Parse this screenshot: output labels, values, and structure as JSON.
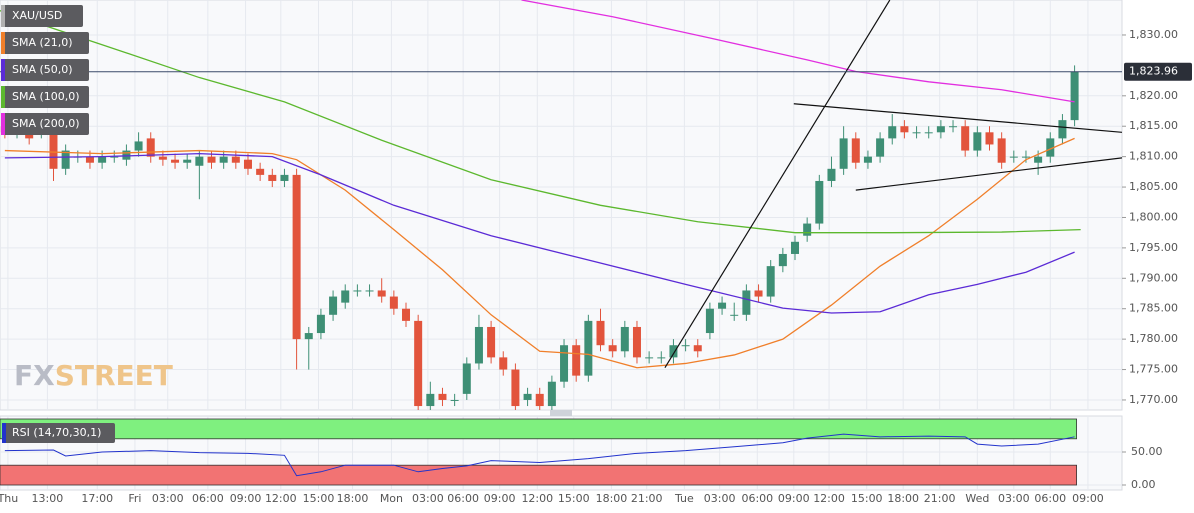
{
  "chart_data": [
    {
      "type": "candlestick",
      "series": [
        {
          "name": "XAU/USD",
          "up_color": "#3e8f75",
          "down_color": "#e2543c",
          "open": [
            1815,
            1814,
            1814,
            1814,
            1815,
            1808,
            1810,
            1810,
            1809,
            1810,
            1809.5,
            1811,
            1813,
            1810,
            1809.5,
            1809,
            1808.5,
            1810,
            1809,
            1810,
            1809.5,
            1808,
            1807,
            1806,
            1807,
            1780,
            1781,
            1784,
            1786,
            1788,
            1788,
            1788,
            1787,
            1785,
            1783,
            1769,
            1771,
            1770,
            1771,
            1776,
            1782,
            1777,
            1775,
            1770,
            1771,
            1769,
            1773,
            1779,
            1774,
            1783,
            1779,
            1778,
            1782,
            1777,
            1777,
            1777,
            1779,
            1779,
            1781,
            1785,
            1784,
            1784,
            1788,
            1787,
            1792,
            1794,
            1797,
            1799,
            1806,
            1808,
            1813,
            1809,
            1810,
            1813,
            1815,
            1814,
            1814,
            1814,
            1815,
            1815,
            1811,
            1814,
            1813,
            1810,
            1810,
            1809,
            1810,
            1813,
            1816
          ],
          "high": [
            1816,
            1816,
            1815,
            1816,
            1816,
            1812,
            1811,
            1811,
            1811,
            1811,
            1812,
            1814,
            1814,
            1811,
            1810.5,
            1810.5,
            1811,
            1811,
            1811,
            1811,
            1810.5,
            1809,
            1808,
            1808,
            1808,
            1782,
            1785,
            1788,
            1789,
            1789,
            1789,
            1790,
            1788,
            1786,
            1784,
            1773,
            1772,
            1771,
            1777,
            1784,
            1783,
            1778,
            1776,
            1772,
            1772,
            1774,
            1780,
            1780,
            1784,
            1785,
            1780,
            1783,
            1783,
            1778,
            1778,
            1780,
            1780,
            1780,
            1786,
            1787,
            1786,
            1789,
            1789,
            1793,
            1795,
            1797,
            1800,
            1807,
            1810,
            1815,
            1814,
            1811,
            1814,
            1817,
            1816,
            1815,
            1815,
            1816,
            1816,
            1816,
            1815,
            1815,
            1814,
            1811,
            1811,
            1811,
            1814,
            1817,
            1825
          ],
          "low": [
            1813,
            1813,
            1812,
            1813,
            1806,
            1807,
            1809,
            1808,
            1808,
            1809,
            1808.5,
            1810,
            1809,
            1808.5,
            1808,
            1808,
            1803,
            1808,
            1808,
            1808,
            1807,
            1806,
            1805,
            1805,
            1775,
            1775,
            1780,
            1783,
            1785,
            1787,
            1787,
            1786,
            1784,
            1782,
            1768,
            1768,
            1769,
            1769,
            1770,
            1775,
            1776,
            1774,
            1768,
            1769,
            1768,
            1768,
            1772,
            1773,
            1773,
            1778,
            1777,
            1777,
            1776,
            1776,
            1776,
            1776,
            1778,
            1777,
            1780,
            1784,
            1783,
            1783,
            1786,
            1786,
            1791,
            1793,
            1796,
            1798,
            1805,
            1807,
            1808,
            1808,
            1809,
            1812,
            1813,
            1813,
            1813,
            1813,
            1814,
            1810,
            1810,
            1811,
            1808,
            1809,
            1809,
            1807,
            1809,
            1812,
            1815
          ],
          "close": [
            1814,
            1815,
            1813,
            1815,
            1808,
            1811,
            1810,
            1809,
            1810,
            1810,
            1811,
            1812.5,
            1810,
            1809.5,
            1809,
            1809.5,
            1810,
            1809,
            1810,
            1809,
            1808,
            1807,
            1806,
            1807,
            1780,
            1781,
            1784,
            1787,
            1788,
            1788,
            1788,
            1787,
            1785,
            1783,
            1769,
            1771,
            1770,
            1770,
            1776,
            1782,
            1777,
            1775,
            1769,
            1771,
            1769,
            1773,
            1779,
            1774,
            1783,
            1779,
            1778,
            1782,
            1777,
            1777,
            1777,
            1779,
            1779,
            1778,
            1785,
            1786,
            1784,
            1788,
            1787,
            1792,
            1794,
            1796,
            1799,
            1806,
            1808,
            1813,
            1809,
            1810,
            1813,
            1815,
            1814,
            1814,
            1814,
            1815,
            1815,
            1811,
            1814,
            1812,
            1809,
            1810,
            1810,
            1810,
            1813,
            1816,
            1824
          ]
        },
        {
          "name": "SMA (21,0)",
          "color": "#f07f2a",
          "x": [
            0,
            8,
            16,
            22,
            24,
            28,
            32,
            36,
            40,
            44,
            48,
            52,
            56,
            60,
            64,
            68,
            72,
            76,
            80,
            84,
            88
          ],
          "values": [
            1811,
            1810.5,
            1811,
            1810.5,
            1809.5,
            1804.5,
            1798,
            1791.4,
            1784,
            1778,
            1777.5,
            1775.3,
            1776,
            1777.4,
            1780,
            1785.6,
            1792,
            1797,
            1803,
            1809.5,
            1813
          ]
        },
        {
          "name": "SMA (50,0)",
          "color": "#5b2bd6",
          "x": [
            0,
            8,
            16,
            22,
            26,
            32,
            40,
            48,
            56,
            64,
            68,
            72,
            76,
            80,
            84,
            88
          ],
          "values": [
            1809.8,
            1810,
            1810.5,
            1810,
            1807,
            1802,
            1797,
            1793,
            1789,
            1785.1,
            1784.3,
            1784.5,
            1787.3,
            1789,
            1791,
            1794.3
          ]
        },
        {
          "name": "SMA (100,0)",
          "color": "#5cb82e",
          "x": [
            -0.4,
            8,
            16,
            23,
            31,
            40,
            49,
            57,
            65,
            73,
            82,
            88.5
          ],
          "values": [
            1834,
            1828.4,
            1823,
            1819,
            1812.7,
            1806.2,
            1802,
            1799.3,
            1797.5,
            1797.5,
            1797.6,
            1798
          ]
        },
        {
          "name": "SMA (200,0)",
          "color": "#e22fe0",
          "x": [
            42.5,
            50,
            58,
            66,
            70,
            76,
            82,
            88
          ],
          "values": [
            1835.75,
            1833,
            1829.5,
            1825.9,
            1824,
            1822.3,
            1821,
            1819
          ]
        }
      ],
      "trendlines": [
        {
          "x": [
            54.3,
            72.8
          ],
          "y": [
            1775.3,
            1835.75
          ]
        },
        {
          "x": [
            64.9,
            91.9
          ],
          "y": [
            1818.7,
            1814
          ]
        },
        {
          "x": [
            70,
            91.9
          ],
          "y": [
            1804.5,
            1809.8
          ]
        }
      ],
      "trendline_color": "#111111",
      "last_price": {
        "value": 1823.96,
        "label": "1,823.96"
      },
      "xlim": [
        -0.4,
        91.9
      ],
      "xticks": [
        {
          "value": 0.25,
          "label": "Thu"
        },
        {
          "value": 3.5,
          "label": "13:00"
        },
        {
          "value": 7.6,
          "label": "17:00"
        },
        {
          "value": 10.7,
          "label": "Fri"
        },
        {
          "value": 13.4,
          "label": "03:00"
        },
        {
          "value": 16.7,
          "label": "06:00"
        },
        {
          "value": 19.8,
          "label": "09:00"
        },
        {
          "value": 22.7,
          "label": "12:00"
        },
        {
          "value": 25.8,
          "label": "15:00"
        },
        {
          "value": 28.6,
          "label": "18:00"
        },
        {
          "value": 31.8,
          "label": "Mon"
        },
        {
          "value": 34.8,
          "label": "03:00"
        },
        {
          "value": 37.7,
          "label": "06:00"
        },
        {
          "value": 40.7,
          "label": "09:00"
        },
        {
          "value": 43.8,
          "label": "12:00"
        },
        {
          "value": 46.8,
          "label": "15:00"
        },
        {
          "value": 49.9,
          "label": "18:00"
        },
        {
          "value": 52.8,
          "label": "21:00"
        },
        {
          "value": 55.9,
          "label": "Tue"
        },
        {
          "value": 58.8,
          "label": "03:00"
        },
        {
          "value": 61.9,
          "label": "06:00"
        },
        {
          "value": 64.9,
          "label": "09:00"
        },
        {
          "value": 67.8,
          "label": "12:00"
        },
        {
          "value": 70.9,
          "label": "15:00"
        },
        {
          "value": 73.9,
          "label": "18:00"
        },
        {
          "value": 76.9,
          "label": "21:00"
        },
        {
          "value": 80,
          "label": "Wed"
        },
        {
          "value": 83,
          "label": "03:00"
        },
        {
          "value": 86,
          "label": "06:00"
        },
        {
          "value": 89.1,
          "label": "09:00"
        }
      ],
      "ylim": [
        1768.35,
        1835.75
      ],
      "yticks": [
        {
          "value": 1830,
          "label": "1,830.00"
        },
        {
          "value": 1820,
          "label": "1,820.00"
        },
        {
          "value": 1815,
          "label": "1,815.00"
        },
        {
          "value": 1810,
          "label": "1,810.00"
        },
        {
          "value": 1805,
          "label": "1,805.00"
        },
        {
          "value": 1800,
          "label": "1,800.00"
        },
        {
          "value": 1795,
          "label": "1,795.00"
        },
        {
          "value": 1790,
          "label": "1,790.00"
        },
        {
          "value": 1785,
          "label": "1,785.00"
        },
        {
          "value": 1780,
          "label": "1,780.00"
        },
        {
          "value": 1775,
          "label": "1,775.00"
        },
        {
          "value": 1770,
          "label": "1,770.00"
        }
      ],
      "grid": true
    },
    {
      "type": "line",
      "series": [
        {
          "name": "RSI (14,70,30,1)",
          "color": "#2233cc",
          "x": [
            0,
            4,
            5,
            8,
            12,
            16,
            20,
            23,
            24,
            26,
            28,
            32,
            34,
            36,
            38,
            40,
            44,
            48,
            52,
            56,
            60,
            64,
            66,
            69,
            72,
            76,
            79,
            80,
            82,
            85,
            88
          ],
          "values": [
            52,
            53,
            44,
            50,
            52,
            49,
            48,
            45,
            14,
            20,
            30,
            30,
            20,
            25,
            29,
            37,
            34,
            40,
            48,
            52,
            58,
            64,
            71,
            77,
            73,
            74,
            73,
            62,
            59,
            62,
            73
          ]
        }
      ],
      "levels": [
        70,
        30
      ],
      "level_colors": [
        "#7ff07f",
        "#f27373"
      ],
      "ylim": [
        0,
        100
      ],
      "yticks": [
        {
          "value": 50,
          "label": "50.00"
        },
        {
          "value": 0,
          "label": "0.00"
        }
      ],
      "grid": true
    }
  ],
  "watermark": [
    "FX",
    "STREET"
  ]
}
